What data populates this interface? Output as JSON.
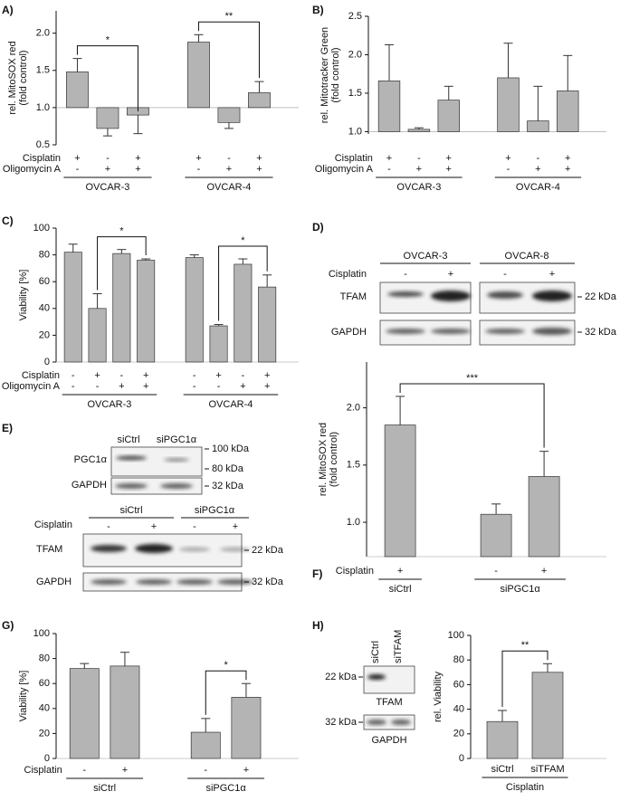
{
  "chart_data": [
    {
      "type": "bar",
      "panel": "A)",
      "ylabel": [
        "rel. MitoSOX red",
        "(fold control)"
      ],
      "ylim": [
        0.5,
        2.3
      ],
      "yticks": [
        0.5,
        {
          "value": 1,
          "label": "1.0"
        },
        1.5,
        {
          "value": 2,
          "label": "2.0"
        }
      ],
      "baseline": 1,
      "color": "#b4b4b4",
      "values": [
        1.48,
        0.72,
        0.9,
        1.88,
        0.8,
        1.2
      ],
      "errors": [
        0.18,
        0.1,
        0.25,
        0.1,
        0.08,
        0.15
      ],
      "conditions": [
        {
          "name": "Cisplatin",
          "values": [
            "+",
            "-",
            "+",
            "+",
            "-",
            "+"
          ]
        },
        {
          "name": "Oligomycin A",
          "values": [
            "-",
            "+",
            "+",
            "-",
            "+",
            "+"
          ]
        }
      ],
      "groups": [
        {
          "name": "OVCAR-3",
          "count": 3
        },
        {
          "name": "OVCAR-4",
          "count": 3
        }
      ],
      "significance": [
        {
          "label": "*",
          "from": 0,
          "to": 2
        },
        {
          "label": "**",
          "from": 3,
          "to": 5
        }
      ]
    },
    {
      "type": "bar",
      "panel": "B)",
      "ylabel": [
        "rel. Mitotracker Green",
        "(fold control)"
      ],
      "ylim": [
        0.97,
        2.5
      ],
      "yticks": [
        {
          "value": 1,
          "label": "1.0"
        },
        1.5,
        {
          "value": 2,
          "label": "2.0"
        },
        2.5
      ],
      "baseline": 1,
      "color": "#b4b4b4",
      "values": [
        1.66,
        1.03,
        1.41,
        1.7,
        1.14,
        1.53
      ],
      "errors": [
        0.47,
        0.02,
        0.18,
        0.45,
        0.45,
        0.46
      ],
      "conditions": [
        {
          "name": "Cisplatin",
          "values": [
            "+",
            "-",
            "+",
            "+",
            "-",
            "+"
          ]
        },
        {
          "name": "Oligomycin A",
          "values": [
            "-",
            "+",
            "+",
            "-",
            "+",
            "+"
          ]
        }
      ],
      "groups": [
        {
          "name": "OVCAR-3",
          "count": 3
        },
        {
          "name": "OVCAR-4",
          "count": 3
        }
      ],
      "significance": []
    },
    {
      "type": "bar",
      "panel": "C)",
      "ylabel": [
        "Viability [%]"
      ],
      "ylim": [
        0,
        100
      ],
      "yticks": [
        0,
        20,
        40,
        60,
        80,
        100
      ],
      "color": "#b4b4b4",
      "values": [
        82,
        40,
        81,
        76,
        78,
        27,
        73,
        56
      ],
      "errors": [
        6,
        11,
        3,
        1,
        2,
        1,
        4,
        9
      ],
      "conditions": [
        {
          "name": "Cisplatin",
          "values": [
            "-",
            "+",
            "-",
            "+",
            "-",
            "+",
            "-",
            "+"
          ]
        },
        {
          "name": "Oligomycin A",
          "values": [
            "-",
            "-",
            "+",
            "+",
            "-",
            "-",
            "+",
            "+"
          ]
        }
      ],
      "groups": [
        {
          "name": "OVCAR-3",
          "count": 4
        },
        {
          "name": "OVCAR-4",
          "count": 4
        }
      ],
      "significance": [
        {
          "label": "*",
          "from": 1,
          "to": 3
        },
        {
          "label": "*",
          "from": 5,
          "to": 7
        }
      ]
    },
    {
      "type": "bar",
      "panel": "F)",
      "ylabel": [
        "rel. MitoSOX red",
        "(fold control)"
      ],
      "ylim": [
        0.7,
        2.4
      ],
      "yticks": [
        {
          "value": 1,
          "label": "1.0"
        },
        1.5,
        {
          "value": 2,
          "label": "2.0"
        }
      ],
      "color": "#b4b4b4",
      "values": [
        1.85,
        1.07,
        1.4
      ],
      "errors": [
        0.25,
        0.09,
        0.22
      ],
      "conditions": [
        {
          "name": "Cisplatin",
          "values": [
            "+",
            "-",
            "+"
          ]
        }
      ],
      "groups": [
        {
          "name": "siCtrl",
          "count": 1
        },
        {
          "name": "siPGC1α",
          "count": 2
        }
      ],
      "significance": [
        {
          "label": "***",
          "from": 0,
          "to": 2
        }
      ]
    },
    {
      "type": "bar",
      "panel": "G)",
      "ylabel": [
        "Viability [%]"
      ],
      "ylim": [
        0,
        100
      ],
      "yticks": [
        0,
        20,
        40,
        60,
        80,
        100
      ],
      "color": "#b4b4b4",
      "values": [
        72,
        74,
        21,
        49
      ],
      "errors": [
        4,
        11,
        11,
        11
      ],
      "conditions": [
        {
          "name": "Cisplatin",
          "values": [
            "-",
            "+",
            "-",
            "+"
          ]
        }
      ],
      "groups": [
        {
          "name": "siCtrl",
          "count": 2
        },
        {
          "name": "siPGC1α",
          "count": 2
        }
      ],
      "significance": [
        {
          "label": "*",
          "from": 2,
          "to": 3
        }
      ]
    },
    {
      "type": "bar",
      "panel": "H)",
      "ylabel": [
        "rel. Viability"
      ],
      "ylim": [
        0,
        100
      ],
      "yticks": [
        0,
        20,
        40,
        60,
        80,
        100
      ],
      "color": "#b4b4b4",
      "categories": [
        "siCtrl",
        "siTFAM"
      ],
      "values": [
        30,
        70
      ],
      "errors": [
        9,
        7
      ],
      "conditions": [],
      "groups": [
        {
          "name": "Cisplatin",
          "count": 2
        }
      ],
      "significance": [
        {
          "label": "**",
          "from": 0,
          "to": 1
        }
      ]
    }
  ],
  "blots": {
    "D": {
      "panel": "D)",
      "cell_lines": [
        "OVCAR-3",
        "OVCAR-8"
      ],
      "treatment": "Cisplatin",
      "lanes": [
        "-",
        "+",
        "-",
        "+"
      ],
      "rows": [
        "TFAM",
        "GAPDH"
      ],
      "markers": [
        "22 kDa",
        "32 kDa"
      ]
    },
    "E": {
      "panel": "E)",
      "top_lanes": [
        "siCtrl",
        "siPGC1α"
      ],
      "top_rows": [
        "PGC1α",
        "GAPDH"
      ],
      "top_markers": [
        "100 kDa",
        "80 kDa",
        "32 kDa"
      ],
      "groups": [
        "siCtrl",
        "siPGC1α"
      ],
      "treatment": "Cisplatin",
      "lanes": [
        "-",
        "+",
        "-",
        "+"
      ],
      "rows": [
        "TFAM",
        "GAPDH"
      ],
      "markers": [
        "22 kDa",
        "32 kDa"
      ]
    },
    "H": {
      "lanes": [
        "siCtrl",
        "siTFAM"
      ],
      "rows": [
        "TFAM",
        "GAPDH"
      ],
      "markers": [
        "22 kDa",
        "32 kDa"
      ]
    }
  }
}
